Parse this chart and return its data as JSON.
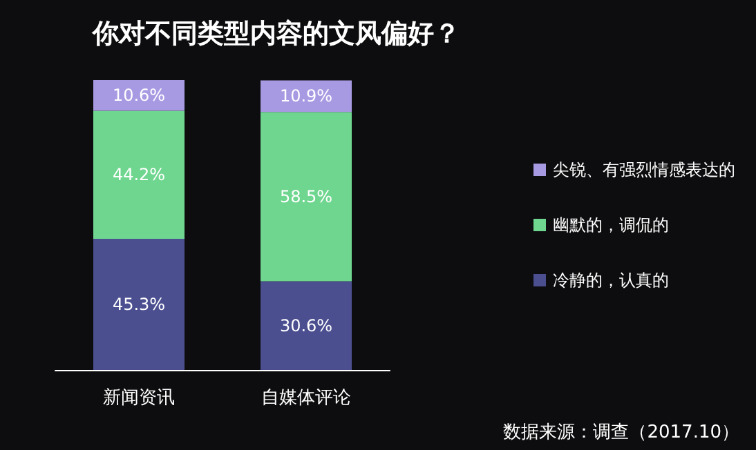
{
  "chart_data": {
    "type": "bar",
    "title": "你对不同类型内容的文风偏好？",
    "categories": [
      "新闻资讯",
      "自媒体评论"
    ],
    "stacked": true,
    "legend": "right",
    "series": [
      {
        "name": "冷静的，认真的",
        "color": "#4b4f90",
        "values": [
          45.3,
          30.6
        ],
        "value_labels": [
          "45.3%",
          "30.6%"
        ]
      },
      {
        "name": "幽默的，调侃的",
        "color": "#6fd68f",
        "values": [
          44.2,
          58.5
        ],
        "value_labels": [
          "44.2%",
          "58.5%"
        ]
      },
      {
        "name": "尖锐、有强烈情感表达的",
        "color": "#a89ae2",
        "values": [
          10.6,
          10.9
        ],
        "value_labels": [
          "10.6%",
          "10.9%"
        ]
      }
    ],
    "annotations": [
      "数据来源：调查（2017.10）"
    ]
  }
}
